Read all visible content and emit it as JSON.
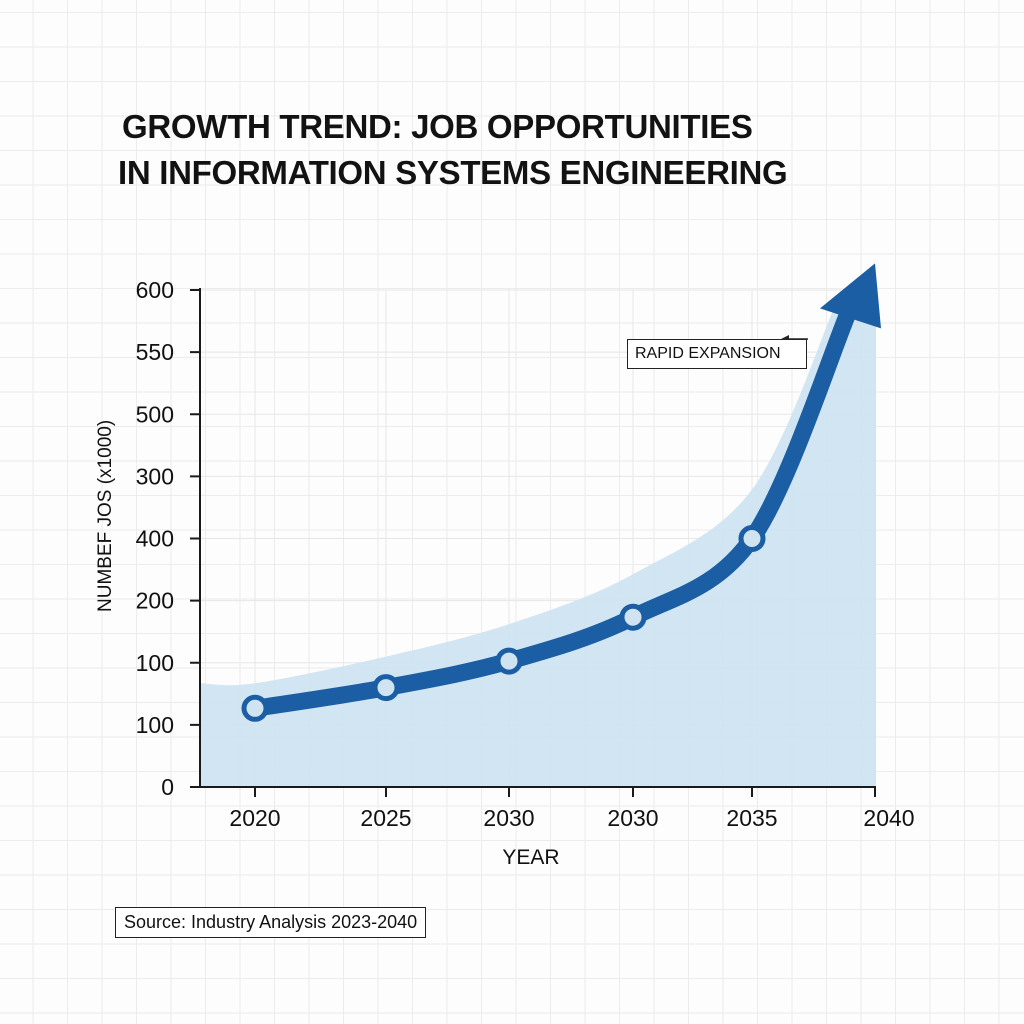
{
  "chart_data": {
    "type": "line",
    "title": "GROWTH TREND: JOB OPPORTUNITIES IN INFORMATION SYSTEMS ENGINEERING",
    "title_lines": [
      "GROWTH TREND: JOB OPPORTUNITIES",
      "IN INFORMATION SYSTEMS ENGINEERING"
    ],
    "xlabel": "YEAR",
    "ylabel": "NUMBEF JOS (x1000)",
    "x_tick_labels": [
      "2020",
      "2025",
      "2030",
      "2030",
      "2035",
      "2040"
    ],
    "y_tick_labels": [
      "0",
      "100",
      "100",
      "200",
      "400",
      "300",
      "500",
      "550",
      "600"
    ],
    "ylim": [
      0,
      600
    ],
    "grid": true,
    "series": [
      {
        "name": "Job opportunities",
        "categories": [
          "2020",
          "2025",
          "2030",
          "2030",
          "2035"
        ],
        "values": [
          95,
          120,
          152,
          205,
          300
        ],
        "arrow_end": 620,
        "marker": "circle",
        "color": "#1b5ea3",
        "area_color": "#cfe4f1"
      }
    ],
    "annotations": [
      {
        "text": "RAPID EXPANSION",
        "near": "arrow-head",
        "style": "boxed"
      }
    ],
    "source_note": "Source: Industry Analysis 2023-2040"
  }
}
